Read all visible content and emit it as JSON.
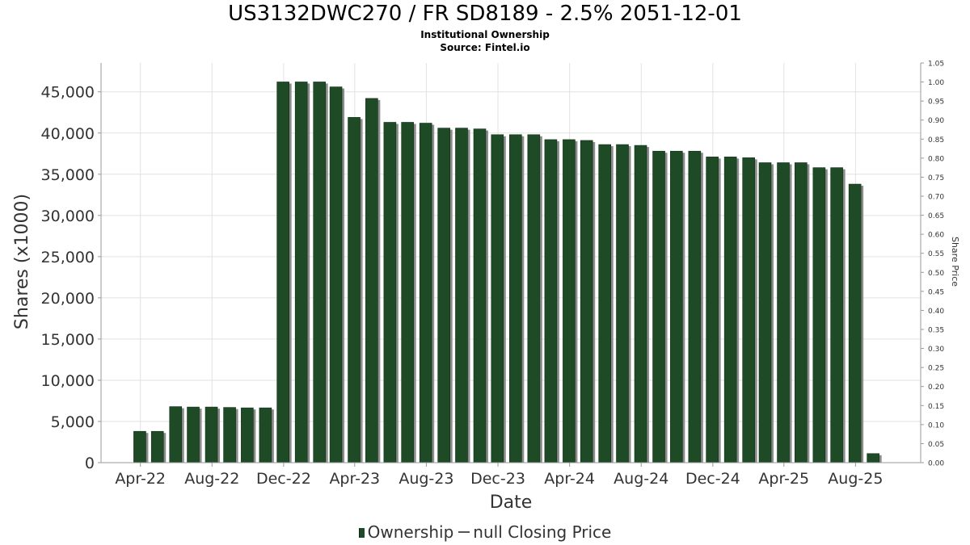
{
  "title": "US3132DWC270 / FR SD8189 - 2.5% 2051-12-01",
  "subtitle": "Institutional Ownership",
  "source": "Source: Fintel.io",
  "legend": {
    "series1": "Ownership",
    "series2": "null Closing Price"
  },
  "colors": {
    "bar": "#1e4a26",
    "bar_shadow": "#8c8c8c",
    "grid": "#e2e2e2"
  },
  "chart_data": {
    "type": "bar",
    "xlabel": "Date",
    "ylabel": "Shares (x1000)",
    "y2label": "Share Price",
    "ylim": [
      0,
      48500
    ],
    "y2lim": [
      0,
      1.05
    ],
    "grid": true,
    "legend_position": "bottom",
    "yticks": [
      0,
      5000,
      10000,
      15000,
      20000,
      25000,
      30000,
      35000,
      40000,
      45000
    ],
    "ytick_labels": [
      "0",
      "5,000",
      "10,000",
      "15,000",
      "20,000",
      "25,000",
      "30,000",
      "35,000",
      "40,000",
      "45,000"
    ],
    "y2ticks": [
      0,
      0.05,
      0.1,
      0.15,
      0.2,
      0.25,
      0.3,
      0.35,
      0.4,
      0.45,
      0.5,
      0.55,
      0.6,
      0.65,
      0.7,
      0.75,
      0.8,
      0.85,
      0.9,
      0.95,
      1.0,
      1.05
    ],
    "y2tick_labels": [
      "0.00",
      "0.05",
      "0.10",
      "0.15",
      "0.20",
      "0.25",
      "0.30",
      "0.35",
      "0.40",
      "0.45",
      "0.50",
      "0.55",
      "0.60",
      "0.65",
      "0.70",
      "0.75",
      "0.80",
      "0.85",
      "0.90",
      "0.95",
      "1.00",
      "1.05"
    ],
    "xticks": [
      {
        "label": "Apr-22",
        "date": "2022-04-01"
      },
      {
        "label": "Aug-22",
        "date": "2022-08-01"
      },
      {
        "label": "Dec-22",
        "date": "2022-12-01"
      },
      {
        "label": "Apr-23",
        "date": "2023-04-01"
      },
      {
        "label": "Aug-23",
        "date": "2023-08-01"
      },
      {
        "label": "Dec-23",
        "date": "2023-12-01"
      },
      {
        "label": "Apr-24",
        "date": "2024-04-01"
      },
      {
        "label": "Aug-24",
        "date": "2024-08-01"
      },
      {
        "label": "Dec-24",
        "date": "2024-12-01"
      },
      {
        "label": "Apr-25",
        "date": "2025-04-01"
      },
      {
        "label": "Aug-25",
        "date": "2025-08-01"
      }
    ],
    "x_range": [
      "2022-01-24",
      "2025-11-20"
    ],
    "series": [
      {
        "name": "Ownership",
        "points": [
          {
            "date": "2022-03-31",
            "value": 3800
          },
          {
            "date": "2022-04-30",
            "value": 3800
          },
          {
            "date": "2022-05-31",
            "value": 6800
          },
          {
            "date": "2022-06-30",
            "value": 6750
          },
          {
            "date": "2022-07-31",
            "value": 6750
          },
          {
            "date": "2022-08-31",
            "value": 6700
          },
          {
            "date": "2022-09-30",
            "value": 6650
          },
          {
            "date": "2022-10-31",
            "value": 6650
          },
          {
            "date": "2022-11-30",
            "value": 46200
          },
          {
            "date": "2022-12-31",
            "value": 46200
          },
          {
            "date": "2023-01-31",
            "value": 46200
          },
          {
            "date": "2023-02-28",
            "value": 45600
          },
          {
            "date": "2023-03-31",
            "value": 41900
          },
          {
            "date": "2023-04-30",
            "value": 44200
          },
          {
            "date": "2023-05-31",
            "value": 41300
          },
          {
            "date": "2023-06-30",
            "value": 41300
          },
          {
            "date": "2023-07-31",
            "value": 41200
          },
          {
            "date": "2023-08-31",
            "value": 40600
          },
          {
            "date": "2023-09-30",
            "value": 40600
          },
          {
            "date": "2023-10-31",
            "value": 40500
          },
          {
            "date": "2023-11-30",
            "value": 39800
          },
          {
            "date": "2023-12-31",
            "value": 39800
          },
          {
            "date": "2024-01-31",
            "value": 39800
          },
          {
            "date": "2024-02-29",
            "value": 39200
          },
          {
            "date": "2024-03-31",
            "value": 39200
          },
          {
            "date": "2024-04-30",
            "value": 39100
          },
          {
            "date": "2024-05-31",
            "value": 38600
          },
          {
            "date": "2024-06-30",
            "value": 38600
          },
          {
            "date": "2024-07-31",
            "value": 38500
          },
          {
            "date": "2024-08-31",
            "value": 37800
          },
          {
            "date": "2024-09-30",
            "value": 37800
          },
          {
            "date": "2024-10-31",
            "value": 37800
          },
          {
            "date": "2024-11-30",
            "value": 37100
          },
          {
            "date": "2024-12-31",
            "value": 37100
          },
          {
            "date": "2025-01-31",
            "value": 37000
          },
          {
            "date": "2025-02-28",
            "value": 36400
          },
          {
            "date": "2025-03-31",
            "value": 36400
          },
          {
            "date": "2025-04-30",
            "value": 36400
          },
          {
            "date": "2025-05-31",
            "value": 35800
          },
          {
            "date": "2025-06-30",
            "value": 35800
          },
          {
            "date": "2025-07-31",
            "value": 33800
          },
          {
            "date": "2025-08-31",
            "value": 1100
          }
        ]
      }
    ]
  }
}
